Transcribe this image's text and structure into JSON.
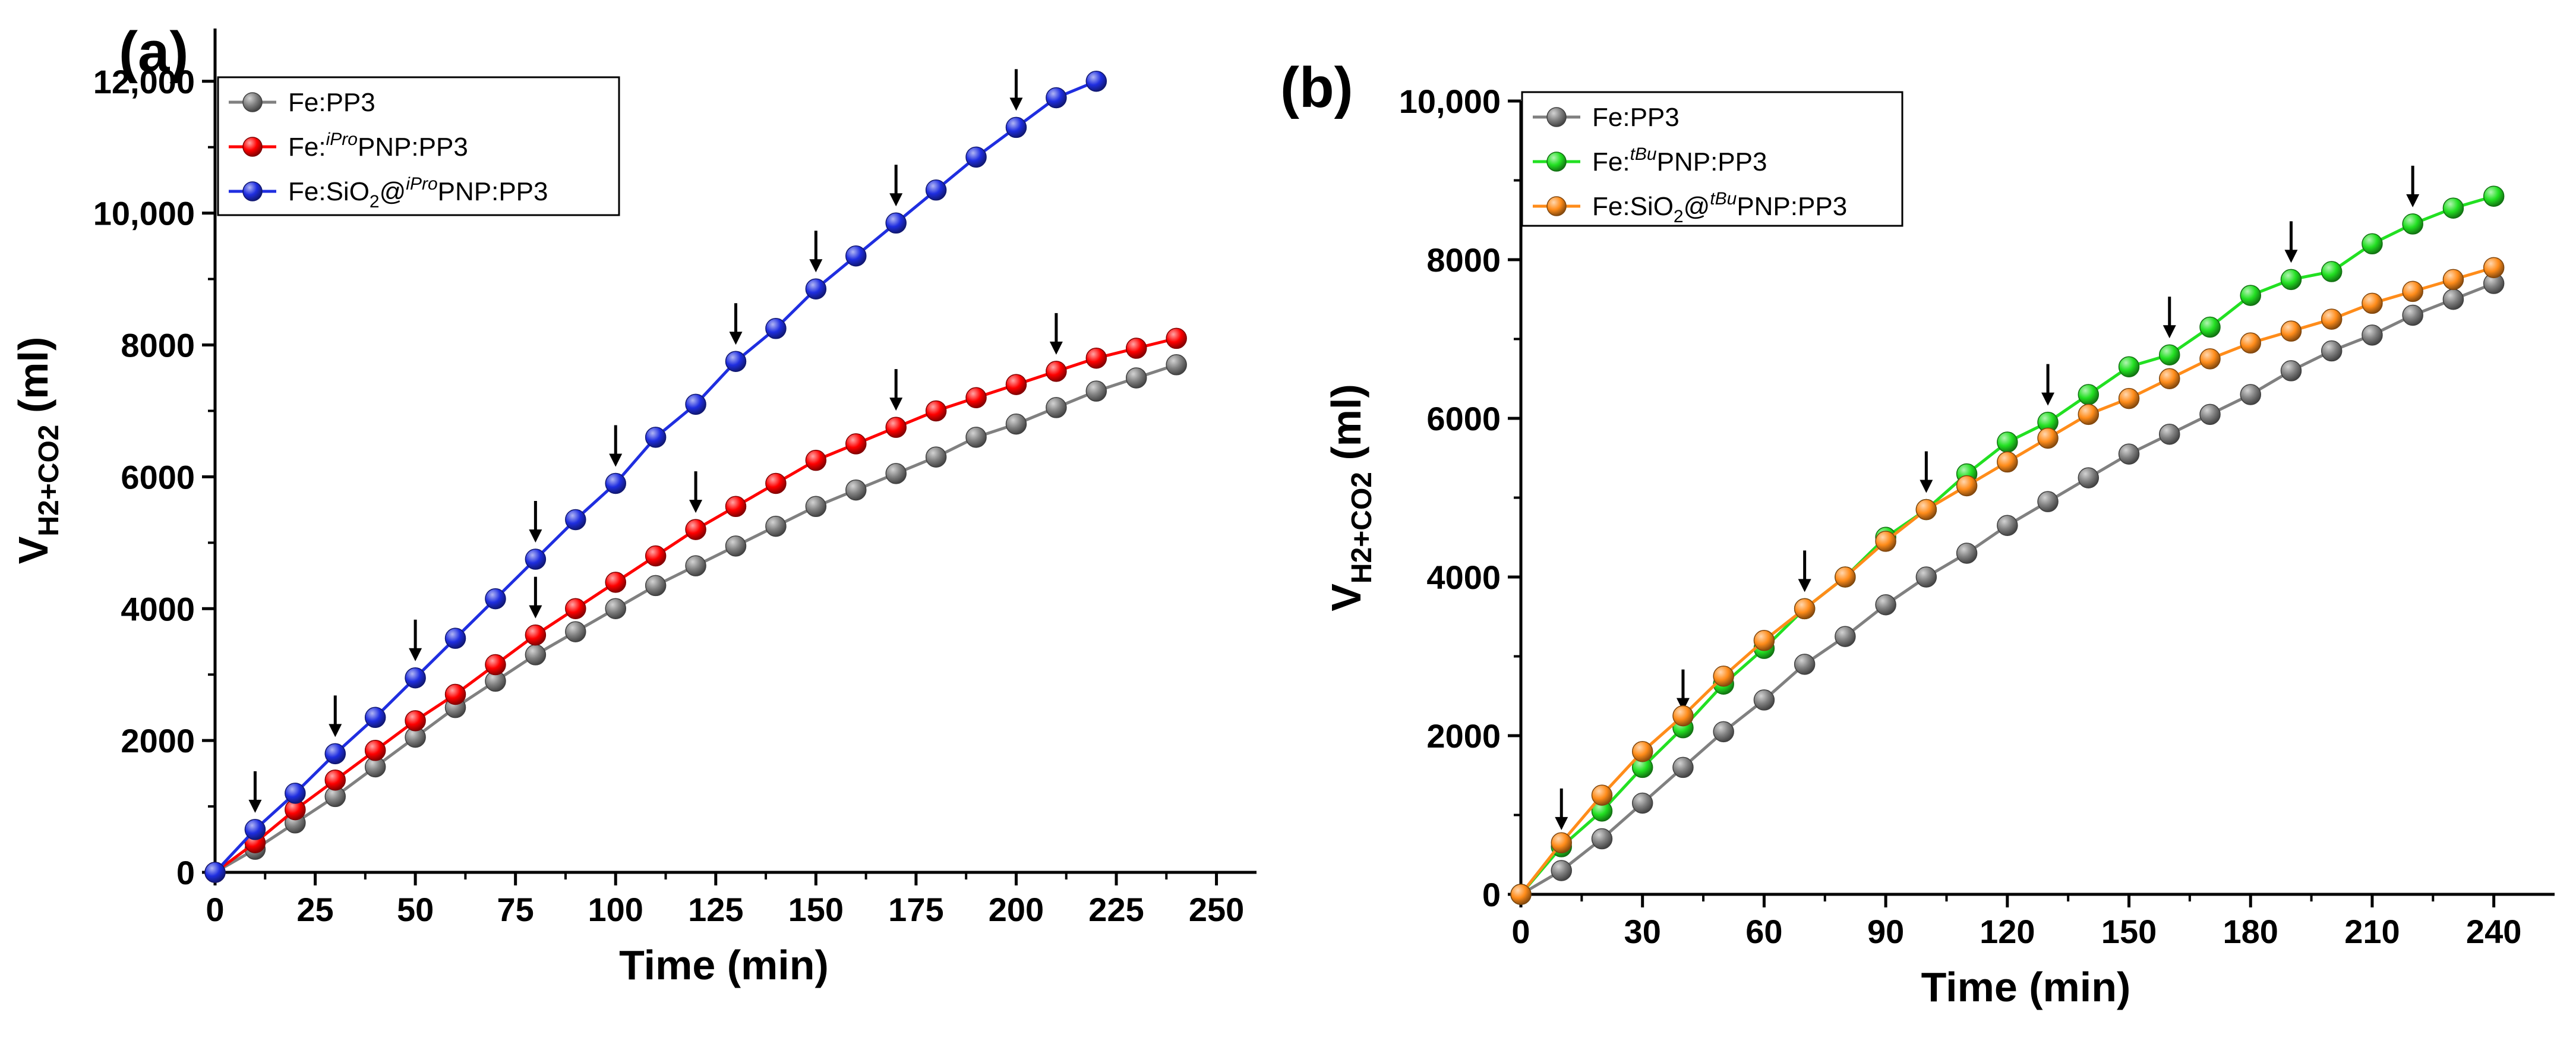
{
  "colors": {
    "Fe:PP3": "#808080",
    "Fe:iProPNP:PP3": "#ff0000",
    "Fe:SiO2@iProPNP:PP3": "#1f2ee0",
    "Fe:tBuPNP:PP3": "#22e022",
    "Fe:SiO2@tBuPNP:PP3": "#ff8c1a",
    "axis": "#000000"
  },
  "chart_data": [
    {
      "type": "line",
      "panel_label": "(a)",
      "xlabel": "Time (min)",
      "ylabel_main": "V",
      "ylabel_sub": "H2+CO2",
      "ylabel_unit": " (ml)",
      "xlim": [
        0,
        260
      ],
      "ylim": [
        0,
        12800
      ],
      "xticks": [
        0,
        25,
        50,
        75,
        100,
        125,
        150,
        175,
        200,
        225,
        250
      ],
      "xtick_labels": [
        "0",
        "25",
        "50",
        "75",
        "100",
        "125",
        "150",
        "175",
        "200",
        "225",
        "250"
      ],
      "yticks": [
        0,
        2000,
        4000,
        6000,
        8000,
        10000,
        12000
      ],
      "ytick_labels": [
        "0",
        "2000",
        "4000",
        "6000",
        "8000",
        "10,000",
        "12,000"
      ],
      "legend_position": "top-left",
      "series": [
        {
          "key": "Fe:PP3",
          "legend": {
            "prefix": "Fe:PP3",
            "sub": "",
            "sup": "",
            "suffix": ""
          },
          "x": [
            0,
            10,
            20,
            30,
            40,
            50,
            60,
            70,
            80,
            90,
            100,
            110,
            120,
            130,
            140,
            150,
            160,
            170,
            180,
            190,
            200,
            210,
            220,
            230,
            240
          ],
          "y": [
            0,
            350,
            750,
            1150,
            1600,
            2050,
            2500,
            2900,
            3300,
            3650,
            4000,
            4350,
            4650,
            4950,
            5250,
            5550,
            5800,
            6050,
            6300,
            6600,
            6800,
            7050,
            7300,
            7500,
            7700
          ],
          "arrows_at_x": []
        },
        {
          "key": "Fe:iProPNP:PP3",
          "legend": {
            "prefix": "Fe:",
            "sub": "",
            "sup": "iPro",
            "suffix": "PNP:PP3"
          },
          "x": [
            0,
            10,
            20,
            30,
            40,
            50,
            60,
            70,
            80,
            90,
            100,
            110,
            120,
            130,
            140,
            150,
            160,
            170,
            180,
            190,
            200,
            210,
            220,
            230,
            240
          ],
          "y": [
            0,
            450,
            950,
            1400,
            1850,
            2300,
            2700,
            3150,
            3600,
            4000,
            4400,
            4800,
            5200,
            5550,
            5900,
            6250,
            6500,
            6750,
            7000,
            7200,
            7400,
            7600,
            7800,
            7950,
            8100
          ],
          "arrows_at_x": [
            80,
            120,
            170,
            210
          ]
        },
        {
          "key": "Fe:SiO2@iProPNP:PP3",
          "legend": {
            "prefix": "Fe:SiO",
            "sub": "2",
            "sup": "iPro",
            "suffix": "PNP:PP3"
          },
          "x": [
            0,
            10,
            20,
            30,
            40,
            50,
            60,
            70,
            80,
            90,
            100,
            110,
            120,
            130,
            140,
            150,
            160,
            170,
            180,
            190,
            200,
            210,
            220
          ],
          "y": [
            0,
            650,
            1200,
            1800,
            2350,
            2950,
            3550,
            4150,
            4750,
            5350,
            5900,
            6600,
            7100,
            7750,
            8250,
            8850,
            9350,
            9850,
            10350,
            10850,
            11300,
            11750,
            12000
          ],
          "arrows_at_x": [
            10,
            30,
            50,
            80,
            100,
            130,
            150,
            170,
            200
          ]
        }
      ]
    },
    {
      "type": "line",
      "panel_label": "(b)",
      "xlabel": "Time (min)",
      "ylabel_main": "V",
      "ylabel_sub": "H2+CO2",
      "ylabel_unit": " (ml)",
      "xlim": [
        0,
        255
      ],
      "ylim": [
        0,
        10000
      ],
      "xticks": [
        0,
        30,
        60,
        90,
        120,
        150,
        180,
        210,
        240
      ],
      "xtick_labels": [
        "0",
        "30",
        "60",
        "90",
        "120",
        "150",
        "180",
        "210",
        "240"
      ],
      "yticks": [
        0,
        2000,
        4000,
        6000,
        8000,
        10000
      ],
      "ytick_labels": [
        "0",
        "2000",
        "4000",
        "6000",
        "8000",
        "10,000"
      ],
      "legend_position": "top-left",
      "series": [
        {
          "key": "Fe:PP3",
          "legend": {
            "prefix": "Fe:PP3",
            "sub": "",
            "sup": "",
            "suffix": ""
          },
          "x": [
            0,
            10,
            20,
            30,
            40,
            50,
            60,
            70,
            80,
            90,
            100,
            110,
            120,
            130,
            140,
            150,
            160,
            170,
            180,
            190,
            200,
            210,
            220,
            230,
            240
          ],
          "y": [
            0,
            300,
            700,
            1150,
            1600,
            2050,
            2450,
            2900,
            3250,
            3650,
            4000,
            4300,
            4650,
            4950,
            5250,
            5550,
            5800,
            6050,
            6300,
            6600,
            6850,
            7050,
            7300,
            7500,
            7700
          ],
          "arrows_at_x": []
        },
        {
          "key": "Fe:tBuPNP:PP3",
          "legend": {
            "prefix": "Fe:",
            "sub": "",
            "sup": "tBu",
            "suffix": "PNP:PP3"
          },
          "x": [
            0,
            10,
            20,
            30,
            40,
            50,
            60,
            70,
            80,
            90,
            100,
            110,
            120,
            130,
            140,
            150,
            160,
            170,
            180,
            190,
            200,
            210,
            220,
            230,
            240
          ],
          "y": [
            0,
            600,
            1050,
            1600,
            2100,
            2650,
            3100,
            3600,
            4000,
            4500,
            4850,
            5300,
            5700,
            5950,
            6300,
            6650,
            6800,
            7150,
            7550,
            7750,
            7850,
            8200,
            8450,
            8650,
            8800
          ],
          "arrows_at_x": [
            10,
            40,
            70,
            100,
            130,
            160,
            190,
            220
          ]
        },
        {
          "key": "Fe:SiO2@tBuPNP:PP3",
          "legend": {
            "prefix": "Fe:SiO",
            "sub": "2",
            "sup": "tBu",
            "suffix": "PNP:PP3"
          },
          "x": [
            0,
            10,
            20,
            30,
            40,
            50,
            60,
            70,
            80,
            90,
            100,
            110,
            120,
            130,
            140,
            150,
            160,
            170,
            180,
            190,
            200,
            210,
            220,
            230,
            240
          ],
          "y": [
            0,
            650,
            1250,
            1800,
            2250,
            2750,
            3200,
            3600,
            4000,
            4450,
            4850,
            5150,
            5450,
            5750,
            6050,
            6250,
            6500,
            6750,
            6950,
            7100,
            7250,
            7450,
            7600,
            7750,
            7900
          ],
          "arrows_at_x": []
        }
      ]
    }
  ]
}
